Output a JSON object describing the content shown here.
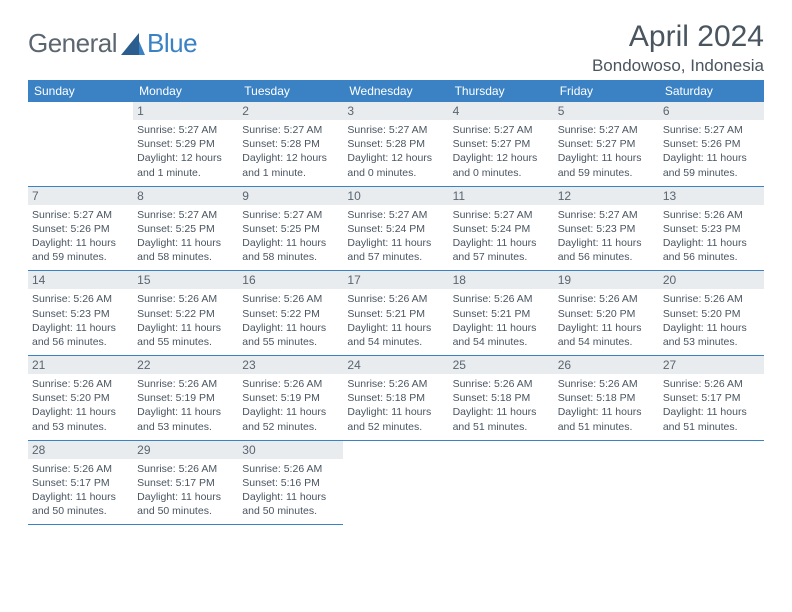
{
  "logo": {
    "text1": "General",
    "text2": "Blue"
  },
  "title": "April 2024",
  "location": "Bondowoso, Indonesia",
  "day_headers": [
    "Sunday",
    "Monday",
    "Tuesday",
    "Wednesday",
    "Thursday",
    "Friday",
    "Saturday"
  ],
  "colors": {
    "header_bg": "#3b82c4",
    "header_text": "#ffffff",
    "daybar_bg": "#e8ecef",
    "text": "#4a5560",
    "border": "#3b82c4",
    "logo_gray": "#5c6670",
    "logo_blue": "#3b82c4"
  },
  "weeks": [
    [
      null,
      {
        "n": "1",
        "sr": "5:27 AM",
        "ss": "5:29 PM",
        "dl": "12 hours and 1 minute."
      },
      {
        "n": "2",
        "sr": "5:27 AM",
        "ss": "5:28 PM",
        "dl": "12 hours and 1 minute."
      },
      {
        "n": "3",
        "sr": "5:27 AM",
        "ss": "5:28 PM",
        "dl": "12 hours and 0 minutes."
      },
      {
        "n": "4",
        "sr": "5:27 AM",
        "ss": "5:27 PM",
        "dl": "12 hours and 0 minutes."
      },
      {
        "n": "5",
        "sr": "5:27 AM",
        "ss": "5:27 PM",
        "dl": "11 hours and 59 minutes."
      },
      {
        "n": "6",
        "sr": "5:27 AM",
        "ss": "5:26 PM",
        "dl": "11 hours and 59 minutes."
      }
    ],
    [
      {
        "n": "7",
        "sr": "5:27 AM",
        "ss": "5:26 PM",
        "dl": "11 hours and 59 minutes."
      },
      {
        "n": "8",
        "sr": "5:27 AM",
        "ss": "5:25 PM",
        "dl": "11 hours and 58 minutes."
      },
      {
        "n": "9",
        "sr": "5:27 AM",
        "ss": "5:25 PM",
        "dl": "11 hours and 58 minutes."
      },
      {
        "n": "10",
        "sr": "5:27 AM",
        "ss": "5:24 PM",
        "dl": "11 hours and 57 minutes."
      },
      {
        "n": "11",
        "sr": "5:27 AM",
        "ss": "5:24 PM",
        "dl": "11 hours and 57 minutes."
      },
      {
        "n": "12",
        "sr": "5:27 AM",
        "ss": "5:23 PM",
        "dl": "11 hours and 56 minutes."
      },
      {
        "n": "13",
        "sr": "5:26 AM",
        "ss": "5:23 PM",
        "dl": "11 hours and 56 minutes."
      }
    ],
    [
      {
        "n": "14",
        "sr": "5:26 AM",
        "ss": "5:23 PM",
        "dl": "11 hours and 56 minutes."
      },
      {
        "n": "15",
        "sr": "5:26 AM",
        "ss": "5:22 PM",
        "dl": "11 hours and 55 minutes."
      },
      {
        "n": "16",
        "sr": "5:26 AM",
        "ss": "5:22 PM",
        "dl": "11 hours and 55 minutes."
      },
      {
        "n": "17",
        "sr": "5:26 AM",
        "ss": "5:21 PM",
        "dl": "11 hours and 54 minutes."
      },
      {
        "n": "18",
        "sr": "5:26 AM",
        "ss": "5:21 PM",
        "dl": "11 hours and 54 minutes."
      },
      {
        "n": "19",
        "sr": "5:26 AM",
        "ss": "5:20 PM",
        "dl": "11 hours and 54 minutes."
      },
      {
        "n": "20",
        "sr": "5:26 AM",
        "ss": "5:20 PM",
        "dl": "11 hours and 53 minutes."
      }
    ],
    [
      {
        "n": "21",
        "sr": "5:26 AM",
        "ss": "5:20 PM",
        "dl": "11 hours and 53 minutes."
      },
      {
        "n": "22",
        "sr": "5:26 AM",
        "ss": "5:19 PM",
        "dl": "11 hours and 53 minutes."
      },
      {
        "n": "23",
        "sr": "5:26 AM",
        "ss": "5:19 PM",
        "dl": "11 hours and 52 minutes."
      },
      {
        "n": "24",
        "sr": "5:26 AM",
        "ss": "5:18 PM",
        "dl": "11 hours and 52 minutes."
      },
      {
        "n": "25",
        "sr": "5:26 AM",
        "ss": "5:18 PM",
        "dl": "11 hours and 51 minutes."
      },
      {
        "n": "26",
        "sr": "5:26 AM",
        "ss": "5:18 PM",
        "dl": "11 hours and 51 minutes."
      },
      {
        "n": "27",
        "sr": "5:26 AM",
        "ss": "5:17 PM",
        "dl": "11 hours and 51 minutes."
      }
    ],
    [
      {
        "n": "28",
        "sr": "5:26 AM",
        "ss": "5:17 PM",
        "dl": "11 hours and 50 minutes."
      },
      {
        "n": "29",
        "sr": "5:26 AM",
        "ss": "5:17 PM",
        "dl": "11 hours and 50 minutes."
      },
      {
        "n": "30",
        "sr": "5:26 AM",
        "ss": "5:16 PM",
        "dl": "11 hours and 50 minutes."
      },
      null,
      null,
      null,
      null
    ]
  ]
}
